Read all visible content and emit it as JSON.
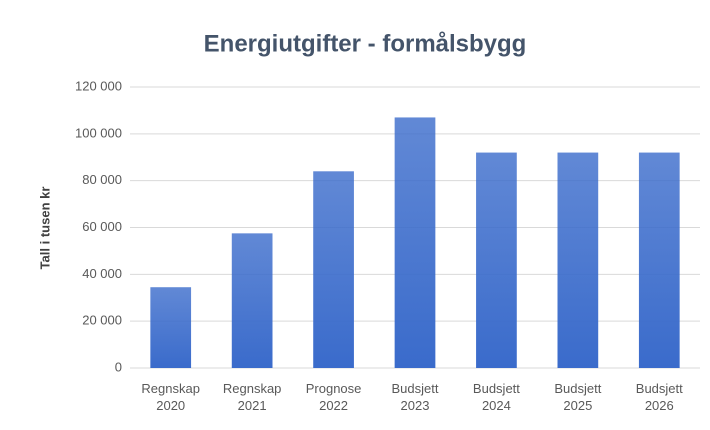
{
  "chart_data": {
    "type": "bar",
    "title": "Energiutgifter  - formålsbygg",
    "y_axis_label": "Tall i tusen kr",
    "categories": [
      "Regnskap 2020",
      "Regnskap 2021",
      "Prognose 2022",
      "Budsjett 2023",
      "Budsjett 2024",
      "Budsjett 2025",
      "Budsjett 2026"
    ],
    "values": [
      34500,
      57500,
      84000,
      107000,
      92000,
      92000,
      92000
    ],
    "color": "#3a6bcb",
    "ylim": [
      0,
      120000
    ],
    "yticks": [
      0,
      {
        "value": 20000,
        "label": "20 000"
      },
      {
        "value": 40000,
        "label": "40 000"
      },
      {
        "value": 60000,
        "label": "60 000"
      },
      {
        "value": 80000,
        "label": "80 000"
      },
      {
        "value": 100000,
        "label": "100 000"
      },
      {
        "value": 120000,
        "label": "120 000"
      }
    ],
    "grid": true
  }
}
